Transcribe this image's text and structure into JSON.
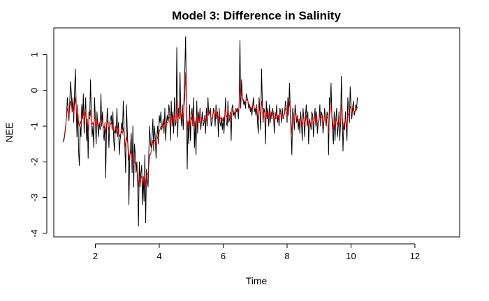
{
  "chart_data": {
    "type": "line",
    "title": "Model 3: Difference in Salinity",
    "xlabel": "Time",
    "ylabel": "NEE",
    "xlim": [
      0.7,
      13.4
    ],
    "ylim": [
      -4.1,
      1.75
    ],
    "xticks": [
      2,
      4,
      6,
      8,
      10,
      12
    ],
    "yticks": [
      -4,
      -3,
      -2,
      -1,
      0,
      1
    ],
    "x_start": 1,
    "x_step": 0.025,
    "grid": false,
    "legend": "none",
    "series": [
      {
        "color": "#000000",
        "values": [
          -1.45,
          -1.35,
          -1.2,
          -0.95,
          -0.7,
          -0.2,
          -0.55,
          -0.85,
          -0.3,
          0.25,
          -0.1,
          -0.6,
          -0.2,
          -0.9,
          -0.05,
          0.6,
          -0.35,
          -1.3,
          -0.4,
          -1.7,
          -2.1,
          -1.0,
          -1.3,
          -0.4,
          -0.8,
          -0.1,
          -1.2,
          -0.6,
          -0.2,
          -1.4,
          -0.8,
          -1.9,
          -0.6,
          -0.7,
          0.3,
          -0.8,
          -1.3,
          -1.0,
          -1.6,
          -0.2,
          -0.8,
          -1.5,
          -0.6,
          -0.95,
          -1.3,
          -0.9,
          -1.1,
          -0.1,
          -1.0,
          -0.6,
          -1.2,
          -1.4,
          -0.9,
          -2.45,
          -1.1,
          -0.5,
          -0.9,
          -1.6,
          -0.9,
          -0.8,
          -0.7,
          -1.1,
          -0.6,
          -1.4,
          -1.7,
          -1.0,
          -1.2,
          -0.5,
          -1.3,
          -0.9,
          -1.8,
          -1.4,
          -1.2,
          -0.9,
          -1.1,
          -0.3,
          -1.1,
          -1.6,
          -2.3,
          -0.4,
          -1.1,
          -1.7,
          -3.2,
          -1.9,
          -1.6,
          -1.2,
          -2.3,
          -1.0,
          -2.7,
          -1.5,
          -1.8,
          -2.3,
          -2.0,
          -2.6,
          -3.8,
          -2.0,
          -2.7,
          -2.3,
          -2.1,
          -3.2,
          -2.4,
          -3.1,
          -1.8,
          -3.7,
          -2.2,
          -2.5,
          -2.7,
          -1.7,
          -1.0,
          -1.5,
          -1.6,
          -1.3,
          -0.8,
          -1.7,
          -1.0,
          -1.3,
          -1.9,
          -1.3,
          -1.0,
          -1.5,
          -0.7,
          -0.9,
          -0.6,
          -1.1,
          -1.0,
          -0.8,
          -1.2,
          -0.5,
          -1.4,
          -0.9,
          -0.7,
          -0.9,
          -0.4,
          -0.6,
          -1.4,
          -0.3,
          -1.0,
          -0.6,
          -1.2,
          -0.2,
          -1.0,
          -0.9,
          1.2,
          -1.3,
          -0.5,
          -0.8,
          0.5,
          -0.7,
          -1.0,
          -0.4,
          -1.1,
          -0.2,
          0.6,
          1.5,
          -0.3,
          -2.2,
          -0.9,
          -1.5,
          -0.4,
          -1.4,
          -0.7,
          -0.5,
          -1.0,
          -0.2,
          -1.6,
          -0.9,
          -1.8,
          -0.3,
          -1.2,
          -0.6,
          -0.9,
          -0.5,
          -1.1,
          -0.8,
          -0.6,
          -1.0,
          -0.9,
          -0.7,
          -1.2,
          -0.5,
          -1.0,
          -0.2,
          -0.7,
          -0.6,
          -0.5,
          -1.0,
          -0.9,
          -0.7,
          -0.5,
          -0.6,
          -1.0,
          -0.4,
          -0.8,
          -0.6,
          -1.3,
          -0.5,
          -0.9,
          -1.0,
          -0.8,
          -1.1,
          -0.8,
          -1.2,
          -0.7,
          -0.2,
          -0.9,
          -1.0,
          -0.3,
          -0.9,
          -0.8,
          -0.6,
          -1.4,
          -0.5,
          -0.4,
          -0.7,
          -0.6,
          -0.8,
          -0.5,
          -0.6,
          -0.5,
          -0.8,
          -0.4,
          1.4,
          -0.5,
          0.3,
          -0.2,
          -0.3,
          -0.4,
          -0.3,
          -0.5,
          -0.1,
          -0.2,
          -0.3,
          -0.5,
          -0.4,
          -0.6,
          -0.5,
          -0.7,
          -0.4,
          -0.2,
          -0.6,
          -0.5,
          -0.7,
          -0.4,
          -0.9,
          -1.2,
          -0.2,
          -0.6,
          -1.1,
          0.6,
          -0.3,
          -0.9,
          -0.5,
          -0.6,
          -1.5,
          -0.3,
          -0.8,
          -0.5,
          -1.0,
          -0.4,
          -0.9,
          -0.6,
          -0.8,
          -0.5,
          -0.7,
          -1.2,
          -0.6,
          -0.8,
          -0.4,
          -0.9,
          -0.7,
          -1.0,
          -0.5,
          -0.6,
          -0.9,
          -0.5,
          -0.8,
          -0.7,
          -0.6,
          -0.3,
          -0.5,
          -0.9,
          -0.2,
          -0.7,
          0.2,
          -0.5,
          -1.2,
          -1.8,
          -0.5,
          -0.7,
          -1.1,
          -0.4,
          -0.6,
          -0.9,
          -0.7,
          -1.1,
          -0.8,
          -1.2,
          -0.6,
          -0.9,
          -1.4,
          -0.5,
          -0.8,
          -1.3,
          -0.7,
          -0.4,
          -1.0,
          -0.6,
          -1.5,
          -0.8,
          -0.9,
          -1.1,
          -0.6,
          -0.7,
          -1.3,
          -0.8,
          -0.5,
          -1.0,
          -0.6,
          -1.2,
          -0.9,
          -0.8,
          -0.4,
          -1.0,
          -0.6,
          -0.7,
          -1.2,
          -0.9,
          -0.5,
          -0.8,
          -1.0,
          -0.6,
          -0.7,
          -1.8,
          -0.2,
          -0.4,
          0.2,
          -0.7,
          -1.2,
          -1.5,
          -0.6,
          -1.4,
          -0.8,
          -0.5,
          -1.3,
          -1.0,
          -0.6,
          -1.4,
          -0.9,
          0.4,
          -0.7,
          -1.7,
          -0.9,
          -1.1,
          -0.6,
          -1.0,
          -1.4,
          -0.2,
          -0.5,
          -0.9,
          0.1,
          -0.4,
          -0.8,
          -0.5,
          -0.3,
          -0.7,
          -0.6,
          -0.4,
          -0.5,
          -0.2
        ]
      },
      {
        "color": "#cc0000",
        "values": [
          -1.4,
          -1.3,
          -1.15,
          -0.95,
          -0.75,
          -0.5,
          -0.6,
          -0.7,
          -0.5,
          -0.3,
          -0.4,
          -0.6,
          -0.45,
          -0.7,
          -0.4,
          -0.2,
          -0.45,
          -0.8,
          -0.55,
          -0.9,
          -1.0,
          -0.85,
          -0.95,
          -0.7,
          -0.8,
          -0.55,
          -0.85,
          -0.75,
          -0.6,
          -0.95,
          -0.85,
          -1.1,
          -0.8,
          -0.8,
          -0.55,
          -0.85,
          -0.95,
          -0.9,
          -1.0,
          -0.7,
          -0.85,
          -1.05,
          -0.85,
          -0.95,
          -1.0,
          -0.9,
          -0.95,
          -0.7,
          -0.9,
          -0.85,
          -1.0,
          -1.05,
          -0.95,
          -1.2,
          -1.0,
          -0.85,
          -0.95,
          -1.1,
          -0.95,
          -0.95,
          -0.9,
          -1.0,
          -0.95,
          -1.1,
          -1.2,
          -1.05,
          -1.1,
          -0.95,
          -1.15,
          -1.05,
          -1.3,
          -1.25,
          -1.2,
          -1.15,
          -1.2,
          -1.05,
          -1.25,
          -1.4,
          -1.6,
          -1.3,
          -1.4,
          -1.55,
          -1.95,
          -1.8,
          -1.75,
          -1.7,
          -1.95,
          -1.8,
          -2.1,
          -2.0,
          -2.05,
          -2.2,
          -2.2,
          -2.35,
          -2.7,
          -2.4,
          -2.5,
          -2.45,
          -2.4,
          -2.65,
          -2.5,
          -2.6,
          -2.3,
          -2.7,
          -2.4,
          -2.35,
          -2.35,
          -2.1,
          -1.8,
          -1.8,
          -1.7,
          -1.55,
          -1.4,
          -1.55,
          -1.4,
          -1.4,
          -1.55,
          -1.4,
          -1.3,
          -1.35,
          -1.15,
          -1.1,
          -1.0,
          -1.05,
          -1.0,
          -0.95,
          -1.0,
          -0.85,
          -1.05,
          -0.95,
          -0.9,
          -0.9,
          -0.75,
          -0.75,
          -1.0,
          -0.7,
          -0.85,
          -0.75,
          -0.9,
          -0.6,
          -0.85,
          -0.85,
          -0.3,
          -0.9,
          -0.7,
          -0.75,
          -0.35,
          -0.65,
          -0.75,
          -0.55,
          -0.8,
          -0.45,
          -0.2,
          0.5,
          -0.2,
          -1.1,
          -0.85,
          -1.0,
          -0.7,
          -1.0,
          -0.85,
          -0.75,
          -0.85,
          -0.6,
          -1.0,
          -0.85,
          -1.1,
          -0.7,
          -0.9,
          -0.75,
          -0.85,
          -0.7,
          -0.9,
          -0.85,
          -0.75,
          -0.85,
          -0.85,
          -0.75,
          -0.9,
          -0.7,
          -0.8,
          -0.55,
          -0.65,
          -0.65,
          -0.6,
          -0.8,
          -0.8,
          -0.7,
          -0.6,
          -0.6,
          -0.75,
          -0.55,
          -0.7,
          -0.65,
          -0.9,
          -0.65,
          -0.75,
          -0.8,
          -0.75,
          -0.85,
          -0.75,
          -0.85,
          -0.7,
          -0.5,
          -0.7,
          -0.75,
          -0.5,
          -0.7,
          -0.7,
          -0.65,
          -0.9,
          -0.6,
          -0.55,
          -0.6,
          -0.6,
          -0.65,
          -0.55,
          -0.55,
          -0.5,
          -0.6,
          -0.45,
          0.3,
          -0.2,
          -0.1,
          -0.2,
          -0.25,
          -0.3,
          -0.3,
          -0.35,
          -0.25,
          -0.25,
          -0.3,
          -0.4,
          -0.4,
          -0.5,
          -0.45,
          -0.55,
          -0.45,
          -0.35,
          -0.5,
          -0.5,
          -0.55,
          -0.45,
          -0.7,
          -0.85,
          -0.5,
          -0.6,
          -0.8,
          -0.3,
          -0.45,
          -0.7,
          -0.6,
          -0.6,
          -0.95,
          -0.6,
          -0.7,
          -0.6,
          -0.8,
          -0.6,
          -0.75,
          -0.65,
          -0.75,
          -0.65,
          -0.7,
          -0.9,
          -0.7,
          -0.75,
          -0.6,
          -0.75,
          -0.7,
          -0.85,
          -0.65,
          -0.65,
          -0.8,
          -0.65,
          -0.75,
          -0.7,
          -0.65,
          -0.5,
          -0.55,
          -0.75,
          -0.45,
          -0.6,
          -0.3,
          -0.5,
          -0.85,
          -1.2,
          -0.75,
          -0.75,
          -0.9,
          -0.65,
          -0.65,
          -0.8,
          -0.75,
          -0.9,
          -0.85,
          -0.95,
          -0.8,
          -0.85,
          -1.05,
          -0.75,
          -0.8,
          -1.0,
          -0.85,
          -0.7,
          -0.85,
          -0.75,
          -1.05,
          -0.9,
          -0.9,
          -0.95,
          -0.8,
          -0.75,
          -0.95,
          -0.85,
          -0.7,
          -0.85,
          -0.75,
          -0.95,
          -0.9,
          -0.85,
          -0.65,
          -0.85,
          -0.75,
          -0.75,
          -0.95,
          -0.9,
          -0.7,
          -0.75,
          -0.85,
          -0.75,
          -0.75,
          -1.2,
          -0.7,
          -0.6,
          -0.4,
          -0.65,
          -0.9,
          -1.1,
          -0.85,
          -1.05,
          -0.9,
          -0.75,
          -0.95,
          -0.9,
          -0.8,
          -1.0,
          -0.9,
          -0.4,
          -0.6,
          -1.1,
          -0.95,
          -0.95,
          -0.8,
          -0.9,
          -1.05,
          -0.7,
          -0.65,
          -0.75,
          -0.45,
          -0.5,
          -0.65,
          -0.6,
          -0.5,
          -0.6,
          -0.6,
          -0.55,
          -0.55,
          -0.45
        ]
      }
    ]
  }
}
